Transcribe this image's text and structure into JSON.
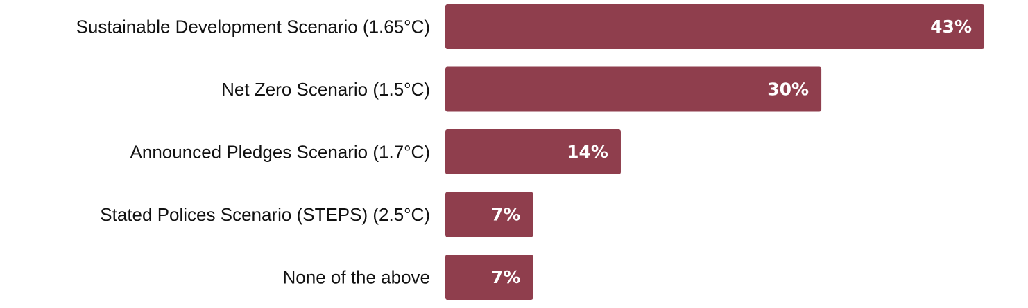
{
  "chart_data": {
    "type": "bar",
    "orientation": "horizontal",
    "categories": [
      "Sustainable Development Scenario (1.65°C)",
      "Net Zero Scenario (1.5°C)",
      "Announced Pledges Scenario (1.7°C)",
      "Stated Polices Scenario (STEPS) (2.5°C)",
      "None of the above"
    ],
    "values": [
      43,
      30,
      14,
      7,
      7
    ],
    "value_labels": [
      "43%",
      "30%",
      "14%",
      "7%",
      "7%"
    ],
    "unit": "%",
    "bar_color": "#8f3e4d",
    "value_label_color": "#ffffff",
    "grid": false,
    "legend": "none",
    "title": "",
    "xlabel": "",
    "ylabel": ""
  }
}
